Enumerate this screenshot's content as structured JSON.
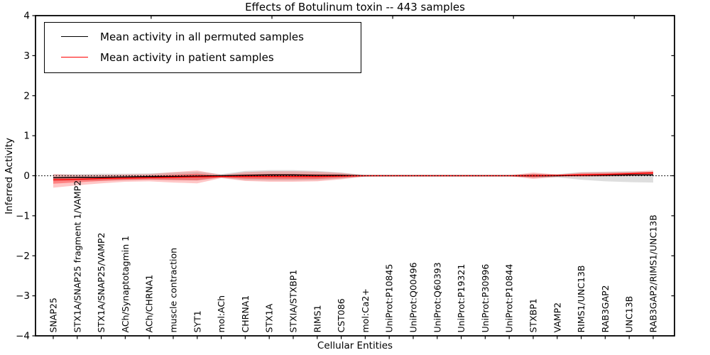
{
  "chart_data": {
    "type": "line",
    "title": "Effects of Botulinum toxin -- 443 samples",
    "xlabel": "Cellular Entities",
    "ylabel": "Inferred Activity",
    "ylim": [
      -4,
      4
    ],
    "yticks": [
      "4",
      "3",
      "2",
      "1",
      "0",
      "−1",
      "−2",
      "−3",
      "−4"
    ],
    "ytick_values": [
      4,
      3,
      2,
      1,
      0,
      -1,
      -2,
      -3,
      -4
    ],
    "grid": false,
    "legend_position": "upper left",
    "background_color": "#ffffff",
    "reference_line": {
      "y": 0,
      "style": "dotted",
      "color": "#000000"
    },
    "categories": [
      "SNAP25",
      "STX1A/SNAP25 fragment 1/VAMP2",
      "STX1A/SNAP25/VAMP2",
      "ACh/Synaptotagmin 1",
      "ACh/CHRNA1",
      "muscle contraction",
      "SYT1",
      "mol:ACh",
      "CHRNA1",
      "STX1A",
      "STXIA/STXBP1",
      "RIMS1",
      "CST086",
      "mol:Ca2+",
      "UniProt:P10845",
      "UniProt:Q00496",
      "UniProt:Q60393",
      "UniProt:P19321",
      "UniProt:P30996",
      "UniProt:P10844",
      "STXBP1",
      "VAMP2",
      "RIMS1/UNC13B",
      "RAB3GAP2",
      "UNC13B",
      "RAB3GAP2/RIMS1/UNC13B"
    ],
    "series": [
      {
        "name": "Mean activity in all permuted samples",
        "color": "#000000",
        "band_color": "#000000",
        "band_opacity": 0.13,
        "double_band": false,
        "values": [
          -0.05,
          -0.04,
          -0.04,
          -0.03,
          -0.02,
          -0.02,
          -0.01,
          0.0,
          0.01,
          0.02,
          0.02,
          0.01,
          0.01,
          0.0,
          0.0,
          0.0,
          0.0,
          0.0,
          0.0,
          0.0,
          0.0,
          0.0,
          0.01,
          0.01,
          0.02,
          0.02
        ],
        "band_upper": [
          0.04,
          0.04,
          0.05,
          0.05,
          0.06,
          0.08,
          0.1,
          0.04,
          0.12,
          0.14,
          0.14,
          0.12,
          0.08,
          0.02,
          0.01,
          0.01,
          0.01,
          0.01,
          0.01,
          0.01,
          0.05,
          0.04,
          0.09,
          0.1,
          0.11,
          0.1
        ],
        "band_lower": [
          -0.14,
          -0.12,
          -0.12,
          -0.11,
          -0.1,
          -0.11,
          -0.12,
          -0.05,
          -0.11,
          -0.12,
          -0.12,
          -0.11,
          -0.07,
          -0.02,
          -0.01,
          -0.01,
          -0.01,
          -0.01,
          -0.01,
          -0.01,
          -0.05,
          -0.04,
          -0.1,
          -0.14,
          -0.16,
          -0.17
        ]
      },
      {
        "name": "Mean activity in patient samples",
        "color": "#ff0000",
        "band_color": "#ff0000",
        "band_opacity": 0.22,
        "double_band": true,
        "values": [
          -0.1,
          -0.09,
          -0.07,
          -0.06,
          -0.05,
          -0.04,
          -0.03,
          -0.02,
          -0.02,
          -0.02,
          -0.02,
          -0.02,
          -0.01,
          0.0,
          0.0,
          0.0,
          0.0,
          0.0,
          0.0,
          0.0,
          0.0,
          0.01,
          0.02,
          0.03,
          0.05,
          0.07
        ],
        "band_upper": [
          0.04,
          0.02,
          0.02,
          0.03,
          0.04,
          0.09,
          0.13,
          0.02,
          0.09,
          0.11,
          0.11,
          0.1,
          0.07,
          0.01,
          0.01,
          0.01,
          0.01,
          0.01,
          0.01,
          0.01,
          0.08,
          0.03,
          0.08,
          0.09,
          0.1,
          0.13
        ],
        "band_lower": [
          -0.3,
          -0.24,
          -0.19,
          -0.15,
          -0.14,
          -0.17,
          -0.19,
          -0.06,
          -0.13,
          -0.15,
          -0.15,
          -0.14,
          -0.09,
          -0.02,
          -0.01,
          -0.01,
          -0.01,
          -0.01,
          -0.01,
          -0.01,
          -0.08,
          -0.03,
          -0.03,
          -0.02,
          -0.01,
          0.01
        ]
      }
    ]
  }
}
